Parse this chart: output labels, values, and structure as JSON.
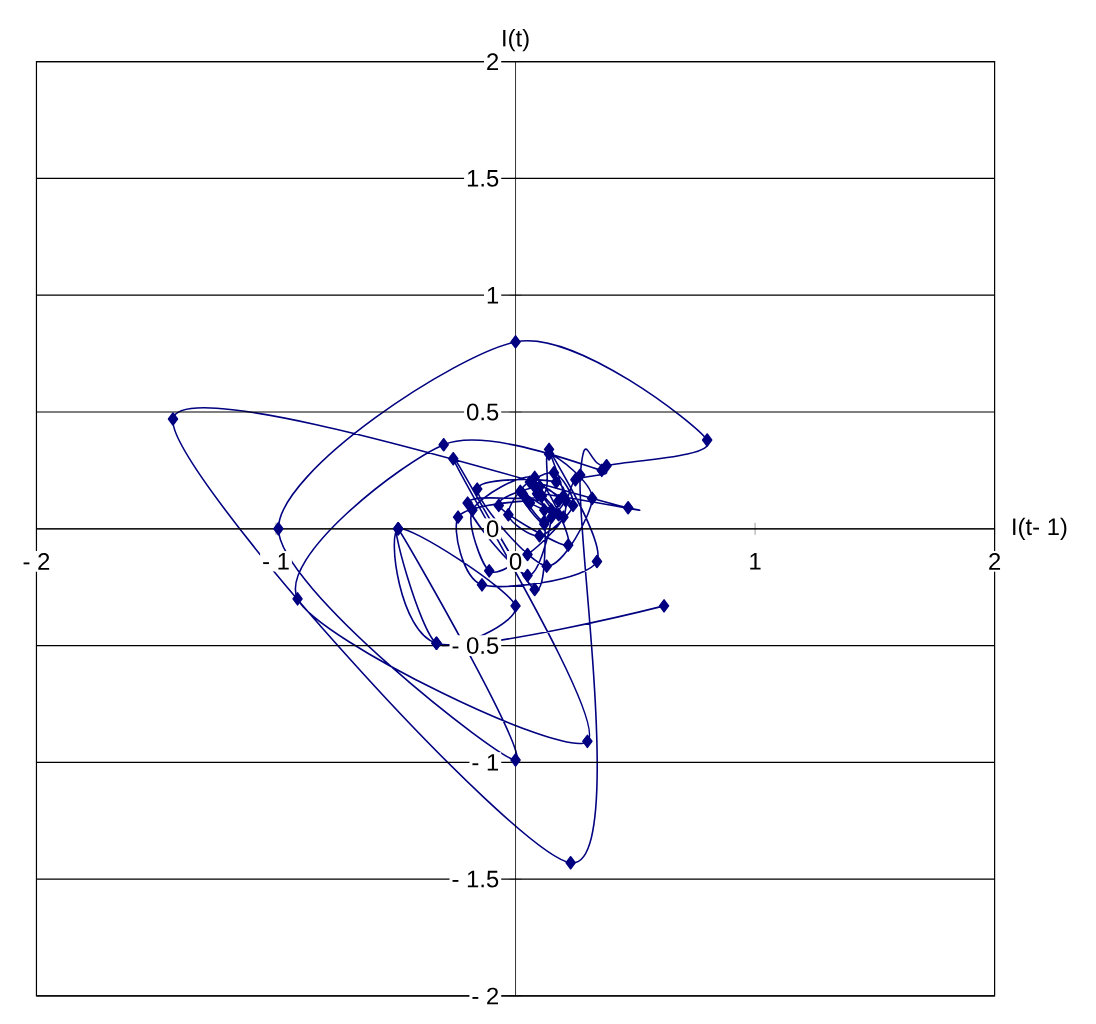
{
  "chart_data": {
    "type": "line",
    "xlabel": "I(t- 1)",
    "ylabel": "I(t)",
    "color": "#000080",
    "marker": "diamond",
    "grid": "y",
    "x": [
      0.62,
      -0.33,
      -0.49,
      0.0,
      -0.33,
      -0.49,
      0.0,
      -0.99,
      0.0,
      0.8,
      0.38,
      0.27,
      0.23,
      -1.43,
      0.47,
      0.09,
      0.15,
      0.05,
      -0.2,
      0.11,
      0.14,
      0.32,
      0.13,
      -0.16,
      0.17,
      0.2,
      0.05,
      -0.11,
      -0.18,
      0.08,
      0.22,
      -0.07,
      0.1,
      0.18,
      0.12,
      0.02,
      0.16,
      0.24,
      0.1,
      -0.03,
      0.06,
      0.2,
      0.14,
      0.34,
      -0.14,
      -0.24,
      0.05,
      0.12,
      0.08,
      -0.26,
      0.3,
      -0.91,
      -0.3,
      0.36,
      0.25,
      0.21,
      0.12,
      0.03,
      0.15,
      0.08,
      0.18,
      0.06
    ],
    "values": [
      -0.33,
      -0.49,
      0.0,
      -0.33,
      -0.49,
      0.0,
      -0.99,
      0.0,
      0.8,
      0.38,
      0.27,
      0.23,
      -1.43,
      0.47,
      0.09,
      0.15,
      0.05,
      -0.2,
      0.11,
      0.14,
      0.32,
      0.13,
      -0.16,
      0.17,
      0.2,
      0.05,
      -0.11,
      -0.18,
      0.08,
      0.22,
      -0.07,
      0.1,
      0.18,
      0.12,
      0.02,
      0.16,
      0.24,
      0.1,
      -0.03,
      0.06,
      0.2,
      0.14,
      0.34,
      -0.14,
      -0.24,
      0.05,
      0.12,
      0.08,
      -0.26,
      0.3,
      -0.91,
      -0.3,
      0.36,
      0.25,
      0.21,
      0.12,
      0.03,
      0.15,
      0.08,
      0.18,
      0.06,
      0.11
    ],
    "xlim": [
      -2,
      2
    ],
    "ylim": [
      -2,
      2
    ],
    "xticks": [
      {
        "value": -2,
        "label": "- 2"
      },
      {
        "value": -1,
        "label": "- 1"
      },
      0,
      1,
      2
    ],
    "yticks": [
      {
        "value": -2,
        "label": "- 2"
      },
      {
        "value": -1.5,
        "label": "- 1.5"
      },
      {
        "value": -1,
        "label": "- 1"
      },
      {
        "value": -0.5,
        "label": "- 0.5"
      },
      0,
      0.5,
      1,
      1.5,
      2
    ]
  }
}
